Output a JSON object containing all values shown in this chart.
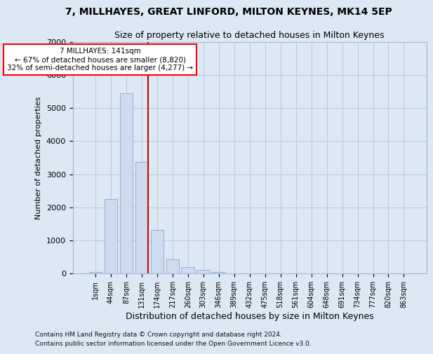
{
  "title": "7, MILLHAYES, GREAT LINFORD, MILTON KEYNES, MK14 5EP",
  "subtitle": "Size of property relative to detached houses in Milton Keynes",
  "xlabel": "Distribution of detached houses by size in Milton Keynes",
  "ylabel": "Number of detached properties",
  "footer_line1": "Contains HM Land Registry data © Crown copyright and database right 2024.",
  "footer_line2": "Contains public sector information licensed under the Open Government Licence v3.0.",
  "annotation_title": "7 MILLHAYES: 141sqm",
  "annotation_line1": "← 67% of detached houses are smaller (8,820)",
  "annotation_line2": "32% of semi-detached houses are larger (4,277) →",
  "bar_color": "#ccdcee",
  "bar_edge_color": "#8aaac8",
  "vline_color": "#cc0000",
  "vline_x_index": 3,
  "categories": [
    "1sqm",
    "44sqm",
    "87sqm",
    "131sqm",
    "174sqm",
    "217sqm",
    "260sqm",
    "303sqm",
    "346sqm",
    "389sqm",
    "432sqm",
    "475sqm",
    "518sqm",
    "561sqm",
    "604sqm",
    "648sqm",
    "691sqm",
    "734sqm",
    "777sqm",
    "820sqm",
    "863sqm"
  ],
  "values": [
    50,
    2250,
    5450,
    3380,
    1310,
    415,
    200,
    105,
    40,
    10,
    5,
    2,
    0,
    0,
    0,
    0,
    0,
    0,
    0,
    0,
    0
  ],
  "ylim": [
    0,
    7000
  ],
  "yticks": [
    0,
    1000,
    2000,
    3000,
    4000,
    5000,
    6000,
    7000
  ],
  "grid_color": "#b8c8dc",
  "bg_color": "#dce8f4"
}
